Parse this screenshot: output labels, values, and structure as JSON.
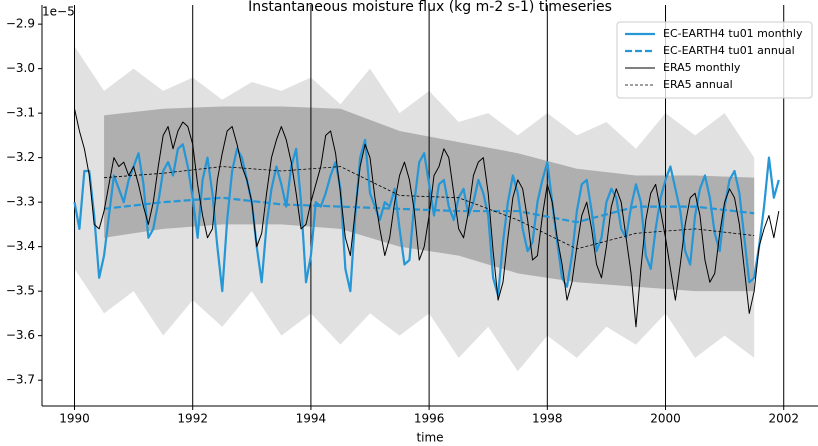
{
  "chart_data": {
    "type": "line",
    "title": "Instantaneous moisture flux (kg m-2 s-1) timeseries",
    "x_label": "time",
    "y_offset_label": "1e−5",
    "xlim": [
      1989.45,
      2002.58
    ],
    "ylim": [
      -3.758,
      -2.857
    ],
    "xticks": [
      1990,
      1992,
      1994,
      1996,
      1998,
      2000,
      2002
    ],
    "yticks": [
      {
        "value": -2.9,
        "label": "−2.9"
      },
      {
        "value": -3.0,
        "label": "−3.0"
      },
      {
        "value": -3.1,
        "label": "−3.1"
      },
      {
        "value": -3.2,
        "label": "−3.2"
      },
      {
        "value": -3.3,
        "label": "−3.3"
      },
      {
        "value": -3.4,
        "label": "−3.4"
      },
      {
        "value": -3.5,
        "label": "−3.5"
      },
      {
        "value": -3.6,
        "label": "−3.6"
      },
      {
        "value": -3.7,
        "label": "−3.7"
      }
    ],
    "grid": "x",
    "legend": "upper right",
    "x": [
      1990.0,
      1990.083,
      1990.167,
      1990.25,
      1990.333,
      1990.417,
      1990.5,
      1990.583,
      1990.667,
      1990.75,
      1990.833,
      1990.917,
      1991.0,
      1991.083,
      1991.167,
      1991.25,
      1991.333,
      1991.417,
      1991.5,
      1991.583,
      1991.667,
      1991.75,
      1991.833,
      1991.917,
      1992.0,
      1992.083,
      1992.167,
      1992.25,
      1992.333,
      1992.417,
      1992.5,
      1992.583,
      1992.667,
      1992.75,
      1992.833,
      1992.917,
      1993.0,
      1993.083,
      1993.167,
      1993.25,
      1993.333,
      1993.417,
      1993.5,
      1993.583,
      1993.667,
      1993.75,
      1993.833,
      1993.917,
      1994.0,
      1994.083,
      1994.167,
      1994.25,
      1994.333,
      1994.417,
      1994.5,
      1994.583,
      1994.667,
      1994.75,
      1994.833,
      1994.917,
      1995.0,
      1995.083,
      1995.167,
      1995.25,
      1995.333,
      1995.417,
      1995.5,
      1995.583,
      1995.667,
      1995.75,
      1995.833,
      1995.917,
      1996.0,
      1996.083,
      1996.167,
      1996.25,
      1996.333,
      1996.417,
      1996.5,
      1996.583,
      1996.667,
      1996.75,
      1996.833,
      1996.917,
      1997.0,
      1997.083,
      1997.167,
      1997.25,
      1997.333,
      1997.417,
      1997.5,
      1997.583,
      1997.667,
      1997.75,
      1997.833,
      1997.917,
      1998.0,
      1998.083,
      1998.167,
      1998.25,
      1998.333,
      1998.417,
      1998.5,
      1998.583,
      1998.667,
      1998.75,
      1998.833,
      1998.917,
      1999.0,
      1999.083,
      1999.167,
      1999.25,
      1999.333,
      1999.417,
      1999.5,
      1999.583,
      1999.667,
      1999.75,
      1999.833,
      1999.917,
      2000.0,
      2000.083,
      2000.167,
      2000.25,
      2000.333,
      2000.417,
      2000.5,
      2000.583,
      2000.667,
      2000.75,
      2000.833,
      2000.917,
      2001.0,
      2001.083,
      2001.167,
      2001.25,
      2001.333,
      2001.417,
      2001.5,
      2001.583,
      2001.667,
      2001.75,
      2001.833,
      2001.917
    ],
    "bands": [
      {
        "color": "#dcdcdc",
        "x": [
          1990.0,
          1990.5,
          1991.0,
          1991.5,
          1992.0,
          1992.5,
          1993.0,
          1993.5,
          1994.0,
          1994.5,
          1995.0,
          1995.5,
          1996.0,
          1996.5,
          1997.0,
          1997.5,
          1998.0,
          1998.5,
          1999.0,
          1999.5,
          2000.0,
          2000.5,
          2001.0,
          2001.5
        ],
        "upper": [
          -2.95,
          -3.05,
          -3.0,
          -3.05,
          -3.02,
          -3.07,
          -3.03,
          -3.05,
          -3.02,
          -3.08,
          -3.0,
          -3.1,
          -3.05,
          -3.12,
          -3.1,
          -3.15,
          -3.1,
          -3.15,
          -3.12,
          -3.18,
          -3.1,
          -3.15,
          -3.1,
          -3.2
        ],
        "lower": [
          -3.45,
          -3.55,
          -3.5,
          -3.6,
          -3.52,
          -3.58,
          -3.5,
          -3.6,
          -3.55,
          -3.62,
          -3.55,
          -3.6,
          -3.55,
          -3.65,
          -3.58,
          -3.68,
          -3.6,
          -3.65,
          -3.58,
          -3.62,
          -3.55,
          -3.65,
          -3.6,
          -3.65
        ]
      },
      {
        "color": "#a6a6a6",
        "x": [
          1990.5,
          1991.5,
          1992.5,
          1993.5,
          1994.5,
          1995.5,
          1996.5,
          1997.5,
          1998.5,
          1999.5,
          2000.5,
          2001.5
        ],
        "upper": [
          -3.105,
          -3.09,
          -3.085,
          -3.085,
          -3.09,
          -3.14,
          -3.165,
          -3.19,
          -3.225,
          -3.24,
          -3.24,
          -3.245
        ],
        "lower": [
          -3.38,
          -3.36,
          -3.35,
          -3.35,
          -3.36,
          -3.4,
          -3.42,
          -3.46,
          -3.48,
          -3.49,
          -3.5,
          -3.5
        ]
      }
    ],
    "series": [
      {
        "name": "EC-EARTH4 tu01 monthly",
        "color": "#2596d6",
        "style": "solid",
        "width": 2.2,
        "values": [
          -3.3,
          -3.36,
          -3.23,
          -3.23,
          -3.33,
          -3.47,
          -3.42,
          -3.33,
          -3.24,
          -3.27,
          -3.3,
          -3.25,
          -3.22,
          -3.19,
          -3.26,
          -3.38,
          -3.36,
          -3.3,
          -3.23,
          -3.21,
          -3.24,
          -3.18,
          -3.17,
          -3.22,
          -3.29,
          -3.38,
          -3.25,
          -3.2,
          -3.28,
          -3.4,
          -3.5,
          -3.34,
          -3.23,
          -3.18,
          -3.2,
          -3.25,
          -3.3,
          -3.4,
          -3.48,
          -3.35,
          -3.27,
          -3.22,
          -3.26,
          -3.31,
          -3.22,
          -3.18,
          -3.3,
          -3.48,
          -3.42,
          -3.3,
          -3.31,
          -3.28,
          -3.24,
          -3.21,
          -3.27,
          -3.45,
          -3.5,
          -3.33,
          -3.2,
          -3.16,
          -3.28,
          -3.31,
          -3.34,
          -3.3,
          -3.31,
          -3.27,
          -3.36,
          -3.44,
          -3.43,
          -3.3,
          -3.21,
          -3.19,
          -3.26,
          -3.33,
          -3.26,
          -3.25,
          -3.31,
          -3.34,
          -3.29,
          -3.27,
          -3.33,
          -3.3,
          -3.25,
          -3.28,
          -3.33,
          -3.47,
          -3.51,
          -3.39,
          -3.3,
          -3.24,
          -3.28,
          -3.36,
          -3.41,
          -3.39,
          -3.3,
          -3.25,
          -3.21,
          -3.3,
          -3.39,
          -3.47,
          -3.49,
          -3.42,
          -3.32,
          -3.26,
          -3.25,
          -3.32,
          -3.41,
          -3.38,
          -3.3,
          -3.27,
          -3.29,
          -3.36,
          -3.38,
          -3.31,
          -3.26,
          -3.3,
          -3.42,
          -3.45,
          -3.36,
          -3.29,
          -3.25,
          -3.22,
          -3.27,
          -3.32,
          -3.41,
          -3.44,
          -3.33,
          -3.27,
          -3.24,
          -3.29,
          -3.37,
          -3.41,
          -3.31,
          -3.25,
          -3.23,
          -3.28,
          -3.38,
          -3.48,
          -3.47,
          -3.4,
          -3.31,
          -3.2,
          -3.29,
          -3.25
        ]
      },
      {
        "name": "EC-EARTH4 tu01 annual",
        "color": "#2596d6",
        "style": "dashed",
        "width": 2.2,
        "x": [
          1990.5,
          1991.5,
          1992.5,
          1993.5,
          1994.5,
          1995.5,
          1996.5,
          1997.5,
          1998.5,
          1999.5,
          2000.5,
          2001.5
        ],
        "values": [
          -3.315,
          -3.3,
          -3.29,
          -3.305,
          -3.31,
          -3.315,
          -3.32,
          -3.32,
          -3.345,
          -3.31,
          -3.31,
          -3.325
        ]
      },
      {
        "name": "ERA5 monthly",
        "color": "#000000",
        "style": "solid",
        "width": 1,
        "values": [
          -3.09,
          -3.14,
          -3.18,
          -3.24,
          -3.35,
          -3.36,
          -3.32,
          -3.26,
          -3.2,
          -3.22,
          -3.21,
          -3.24,
          -3.22,
          -3.26,
          -3.31,
          -3.35,
          -3.3,
          -3.22,
          -3.15,
          -3.13,
          -3.18,
          -3.14,
          -3.12,
          -3.13,
          -3.17,
          -3.26,
          -3.33,
          -3.38,
          -3.36,
          -3.25,
          -3.19,
          -3.14,
          -3.13,
          -3.17,
          -3.22,
          -3.25,
          -3.3,
          -3.4,
          -3.37,
          -3.28,
          -3.2,
          -3.16,
          -3.13,
          -3.16,
          -3.21,
          -3.28,
          -3.36,
          -3.35,
          -3.3,
          -3.26,
          -3.22,
          -3.15,
          -3.14,
          -3.19,
          -3.28,
          -3.38,
          -3.42,
          -3.32,
          -3.22,
          -3.17,
          -3.2,
          -3.29,
          -3.36,
          -3.42,
          -3.38,
          -3.3,
          -3.24,
          -3.21,
          -3.25,
          -3.32,
          -3.43,
          -3.4,
          -3.33,
          -3.24,
          -3.22,
          -3.18,
          -3.2,
          -3.28,
          -3.36,
          -3.38,
          -3.32,
          -3.24,
          -3.21,
          -3.2,
          -3.28,
          -3.41,
          -3.52,
          -3.48,
          -3.38,
          -3.29,
          -3.25,
          -3.27,
          -3.34,
          -3.43,
          -3.42,
          -3.33,
          -3.26,
          -3.3,
          -3.38,
          -3.44,
          -3.52,
          -3.48,
          -3.4,
          -3.33,
          -3.3,
          -3.36,
          -3.44,
          -3.47,
          -3.4,
          -3.31,
          -3.27,
          -3.3,
          -3.38,
          -3.46,
          -3.58,
          -3.45,
          -3.34,
          -3.28,
          -3.26,
          -3.32,
          -3.38,
          -3.45,
          -3.52,
          -3.44,
          -3.35,
          -3.29,
          -3.28,
          -3.33,
          -3.43,
          -3.48,
          -3.46,
          -3.37,
          -3.3,
          -3.27,
          -3.29,
          -3.35,
          -3.45,
          -3.55,
          -3.5,
          -3.4,
          -3.36,
          -3.33,
          -3.38,
          -3.32
        ]
      },
      {
        "name": "ERA5 annual",
        "color": "#000000",
        "style": "dashed",
        "width": 0.8,
        "x": [
          1990.5,
          1991.5,
          1992.5,
          1993.5,
          1994.5,
          1995.5,
          1996.5,
          1997.5,
          1998.5,
          1999.5,
          2000.5,
          2001.5
        ],
        "values": [
          -3.245,
          -3.235,
          -3.22,
          -3.23,
          -3.22,
          -3.285,
          -3.29,
          -3.34,
          -3.405,
          -3.37,
          -3.36,
          -3.375
        ]
      }
    ]
  }
}
